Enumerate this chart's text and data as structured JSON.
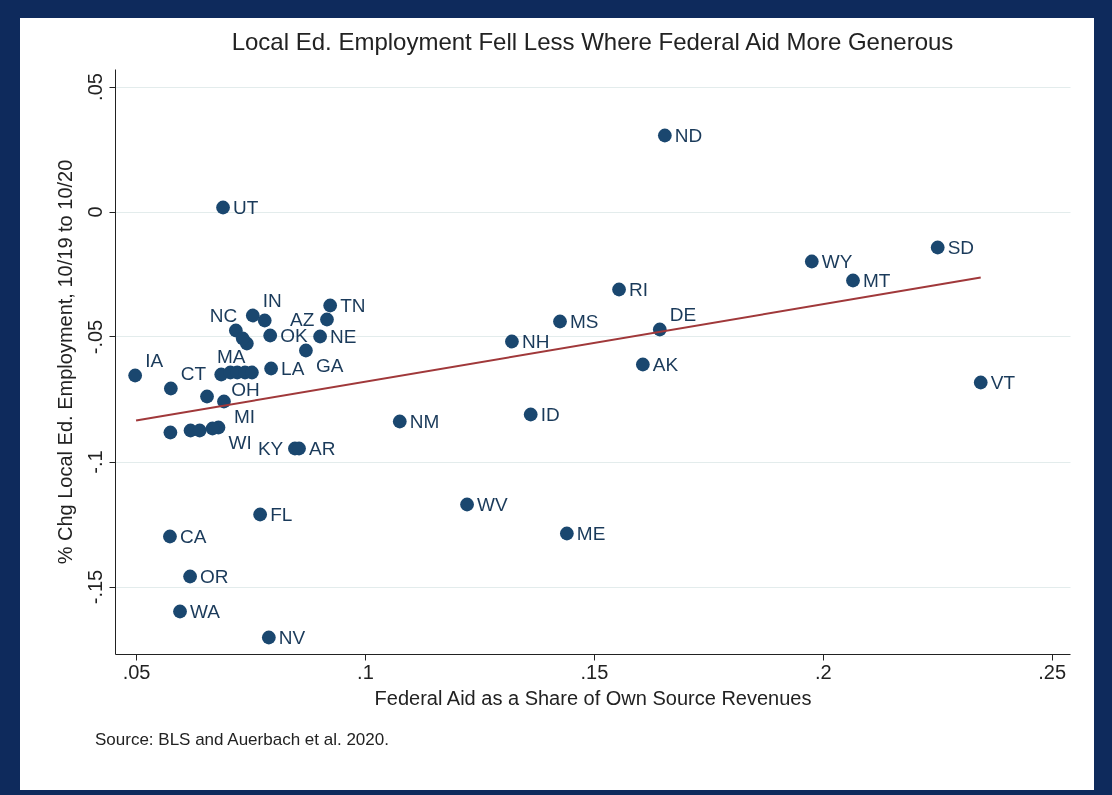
{
  "chart_data": {
    "type": "scatter",
    "title": "Local Ed. Employment Fell Less Where Federal Aid More Generous",
    "xlabel": "Federal Aid as a Share of Own Source Revenues",
    "ylabel": "% Chg Local Ed. Employment, 10/19 to 10/20",
    "annotations": [
      "Source: BLS and Auerbach et al. 2020."
    ],
    "xlim": [
      0.0454,
      0.254
    ],
    "ylim": [
      -0.177,
      0.057
    ],
    "xticks": [
      {
        "value": 0.05,
        "label": ".05"
      },
      {
        "value": 0.1,
        "label": ".1"
      },
      {
        "value": 0.15,
        "label": ".15"
      },
      {
        "value": 0.2,
        "label": ".2"
      },
      {
        "value": 0.25,
        "label": ".25"
      }
    ],
    "yticks": [
      {
        "value": -0.15,
        "label": "-.15"
      },
      {
        "value": -0.1,
        "label": "-.1"
      },
      {
        "value": -0.05,
        "label": "-.05"
      },
      {
        "value": 0,
        "label": "0"
      },
      {
        "value": 0.05,
        "label": ".05"
      }
    ],
    "grid": "y",
    "series": [
      {
        "marker": "circle",
        "color": "#1a476f",
        "x": [
          0.1655,
          0.069,
          0.2251,
          0.1976,
          0.2066,
          0.1555,
          0.2345,
          0.1644,
          0.1607,
          0.1426,
          0.1321,
          0.1362,
          0.1076,
          0.1223,
          0.1441,
          0.0771,
          0.0574,
          0.0618,
          0.0596,
          0.079,
          0.0924,
          0.0917,
          0.0902,
          0.0871,
          0.0795,
          0.0498,
          0.0576,
          0.0686,
          0.0655,
          0.0692,
          0.068,
          0.0847,
          0.0856,
          0.0755,
          0.0793,
          0.0742,
          0.0718,
          0.0733,
          0.0781,
          0.0706,
          0.0721,
          0.0738,
          0.0753,
          0.0575,
          0.0619,
          0.0639,
          0.0667
        ],
        "values": [
          0.0304,
          0.0016,
          -0.0144,
          -0.02,
          -0.0276,
          -0.0312,
          -0.0684,
          -0.0472,
          -0.0612,
          -0.044,
          -0.052,
          -0.0812,
          -0.084,
          -0.1172,
          -0.1288,
          -0.1212,
          -0.13,
          -0.146,
          -0.16,
          -0.1704,
          -0.0376,
          -0.0432,
          -0.05,
          -0.0556,
          -0.0628,
          -0.0656,
          -0.0708,
          -0.0652,
          -0.074,
          -0.076,
          -0.0864,
          -0.0948,
          -0.0948,
          -0.0416,
          -0.0496,
          -0.0528,
          -0.0476,
          -0.0508,
          -0.0436,
          -0.0644,
          -0.0644,
          -0.0644,
          -0.0644,
          -0.0884,
          -0.0876,
          -0.0876,
          -0.0868
        ],
        "value_labels": [
          "ND",
          "UT",
          "SD",
          "WY",
          "MT",
          "RI",
          "VT",
          "DE",
          "AK",
          "MS",
          "NH",
          "ID",
          "NM",
          "WV",
          "ME",
          "FL",
          "CA",
          "OR",
          "WA",
          "NV",
          "TN",
          "AZ",
          "NE",
          "GA",
          "LA",
          "IA",
          "CT",
          "OH",
          "MA",
          "MI",
          "WI",
          "KY",
          "AR",
          "IN",
          "OK",
          "NC",
          null,
          null,
          null,
          null,
          null,
          null,
          null,
          null,
          null,
          null,
          null
        ]
      },
      {
        "type": "line",
        "marker": "none",
        "color": "#a0383a",
        "x": [
          0.05,
          0.2345
        ],
        "values": [
          -0.0836,
          -0.0264
        ]
      }
    ]
  }
}
